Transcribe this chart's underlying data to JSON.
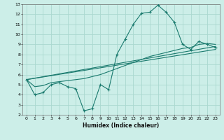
{
  "xlabel": "Humidex (Indice chaleur)",
  "bg_color": "#cceee8",
  "line_color": "#1a7a6e",
  "grid_color": "#aad8d0",
  "xlim": [
    -0.5,
    23.5
  ],
  "ylim": [
    2,
    13
  ],
  "xticks": [
    0,
    1,
    2,
    3,
    4,
    5,
    6,
    7,
    8,
    9,
    10,
    11,
    12,
    13,
    14,
    15,
    16,
    17,
    18,
    19,
    20,
    21,
    22,
    23
  ],
  "yticks": [
    2,
    3,
    4,
    5,
    6,
    7,
    8,
    9,
    10,
    11,
    12,
    13
  ],
  "series1_x": [
    0,
    1,
    2,
    3,
    4,
    5,
    6,
    7,
    8,
    9,
    10,
    11,
    12,
    13,
    14,
    15,
    16,
    17,
    18,
    19,
    20,
    21,
    22,
    23
  ],
  "series1_y": [
    5.5,
    4.0,
    4.2,
    5.0,
    5.2,
    4.8,
    4.6,
    2.4,
    2.6,
    5.0,
    4.5,
    8.0,
    9.5,
    11.0,
    12.1,
    12.2,
    12.9,
    12.2,
    11.2,
    9.0,
    8.5,
    9.3,
    9.0,
    8.7
  ],
  "series2_x": [
    0,
    1,
    2,
    3,
    4,
    5,
    6,
    7,
    8,
    9,
    10,
    11,
    12,
    13,
    14,
    15,
    16,
    17,
    18,
    19,
    20,
    21,
    22,
    23
  ],
  "series2_y": [
    5.5,
    4.8,
    4.9,
    5.2,
    5.3,
    5.4,
    5.5,
    5.6,
    5.8,
    6.0,
    6.3,
    6.6,
    6.9,
    7.2,
    7.5,
    7.8,
    8.0,
    8.2,
    8.4,
    8.6,
    8.7,
    9.0,
    9.1,
    9.0
  ],
  "series3_x": [
    0,
    23
  ],
  "series3_y": [
    5.5,
    8.8
  ],
  "series4_x": [
    0,
    23
  ],
  "series4_y": [
    5.5,
    8.5
  ],
  "marker_x2": [
    0,
    10,
    18,
    21,
    22,
    23
  ],
  "marker_y2": [
    5.5,
    6.3,
    8.4,
    9.0,
    9.1,
    9.0
  ]
}
